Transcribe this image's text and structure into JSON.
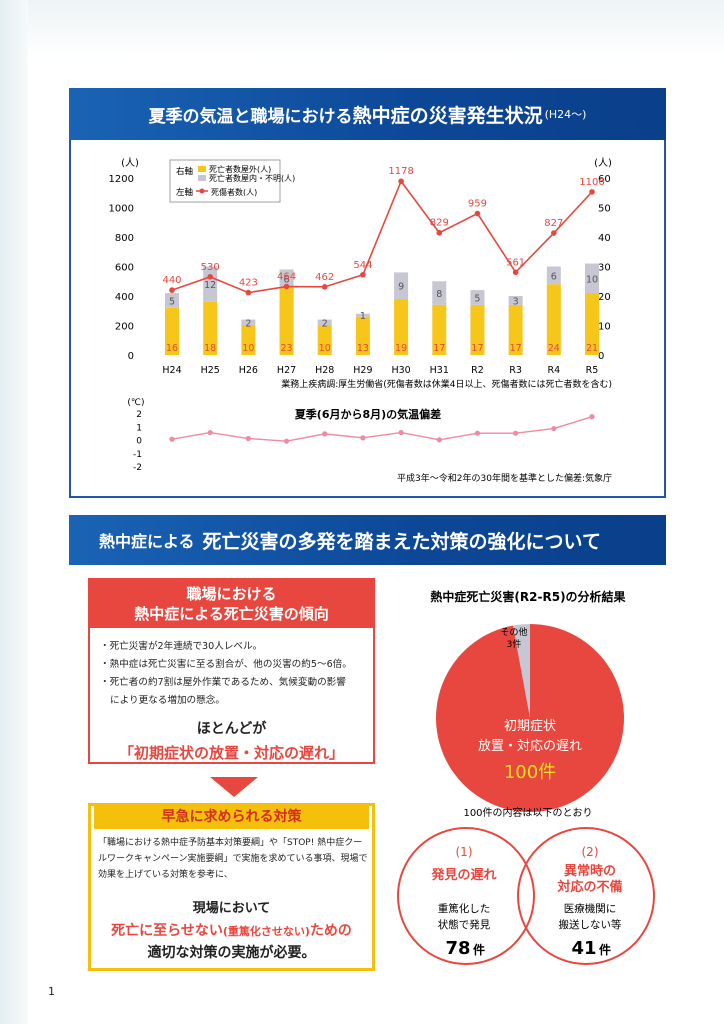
{
  "section1": {
    "title_a": "夏季の気温と職場における",
    "title_b": "熱中症の災害発生状況",
    "title_c": "(H24〜)"
  },
  "chart_data": [
    {
      "type": "bar+line",
      "categories": [
        "H24",
        "H25",
        "H26",
        "H27",
        "H28",
        "H29",
        "H30",
        "H31",
        "R2",
        "R3",
        "R4",
        "R5"
      ],
      "left_axis_unit": "(人)",
      "right_axis_unit": "(人)",
      "left_ticks": [
        "1200",
        "1000",
        "800",
        "600",
        "400",
        "200",
        "0"
      ],
      "right_ticks": [
        "60",
        "50",
        "40",
        "30",
        "20",
        "10",
        "0"
      ],
      "left_ylim": [
        0,
        1200
      ],
      "right_ylim": [
        0,
        60
      ],
      "legend": {
        "right_axis": "右軸",
        "left_axis": "左軸",
        "outdoor": "死亡者数屋外(人)",
        "indoor": "死亡者数屋内・不明(人)",
        "casualties": "死傷者数(人)"
      },
      "series": [
        {
          "name": "死亡者数屋外(人)",
          "axis": "right",
          "values": [
            16,
            18,
            10,
            23,
            10,
            13,
            19,
            17,
            17,
            17,
            24,
            21
          ]
        },
        {
          "name": "死亡者数屋内・不明(人)",
          "axis": "right",
          "values": [
            5,
            12,
            2,
            6,
            2,
            1,
            9,
            8,
            5,
            3,
            6,
            10
          ]
        },
        {
          "name": "死傷者数(人)",
          "axis": "left",
          "values": [
            440,
            530,
            423,
            464,
            462,
            544,
            1178,
            829,
            959,
            561,
            827,
            1106
          ]
        }
      ],
      "source": "業務上疾病調:厚生労働省(死傷者数は休業4日以上、死傷者数には死亡者数を含む)",
      "colors": {
        "outdoor": "#f7c61a",
        "indoor": "#c6c7d2",
        "casualties": "#e8473f"
      }
    },
    {
      "type": "line",
      "title": "夏季(6月から8月)の気温偏差",
      "unit": "(℃)",
      "ticks": [
        "2",
        "1",
        "0",
        "-1",
        "-2"
      ],
      "ylim": [
        -2,
        2
      ],
      "x": [
        "H24",
        "H25",
        "H26",
        "H27",
        "H28",
        "H29",
        "H30",
        "H31",
        "R2",
        "R3",
        "R4",
        "R5"
      ],
      "values": [
        0.1,
        0.6,
        0.15,
        -0.05,
        0.5,
        0.2,
        0.6,
        0.05,
        0.55,
        0.55,
        0.9,
        1.8
      ],
      "note": "平成3年〜令和2年の30年間を基準とした偏差:気象庁",
      "colors": {
        "line": "#f08aa0"
      }
    },
    {
      "type": "pie",
      "title": "熱中症死亡災害(R2-R5)の分析結果",
      "slices": [
        {
          "label": "初期症状の放置・対応の遅れ",
          "value": 100,
          "value_text": "100件",
          "color": "#e8473f"
        },
        {
          "label": "その他",
          "value": 3,
          "value_text": "3件",
          "color": "#c6c7d2"
        }
      ]
    }
  ],
  "section2": {
    "title_a": "熱中症による",
    "title_b": "死亡災害の多発を踏まえた対策の強化について"
  },
  "tendency": {
    "head1": "職場における",
    "head2": "熱中症による死亡災害の傾向",
    "bullet1": "・死亡災害が2年連続で30人レベル。",
    "bullet2": "・熱中症は死亡災害に至る割合が、他の災害の約5〜6倍。",
    "bullet3a": "・死亡者の約7割は屋外作業であるため、気候変動の影響",
    "bullet3b": "により更なる増加の懸念。",
    "hotondo": "ほとんどが",
    "delay": "「初期症状の放置・対応の遅れ」"
  },
  "measures": {
    "head": "早急に求められる対策",
    "text": "「職場における熱中症予防基本対策要綱」や「STOP! 熱中症クールワークキャンペーン実施要綱」で実施を求めている事項、現場で効果を上げている対策を参考に、",
    "line1": "現場において",
    "line2a": "死亡に至らせない",
    "line2b": "(重篤化させない)",
    "line2c": "ための",
    "line3": "適切な対策の実施が必要。"
  },
  "analysis": {
    "breakdown_note": "100件の内容は以下のとおり",
    "c1_num": "(1)",
    "c1_title": "発見の遅れ",
    "c1_desc1": "重篤化した",
    "c1_desc2": "状態で発見",
    "c1_count": "78",
    "c1_unit": "件",
    "c2_num": "(2)",
    "c2_title1": "異常時の",
    "c2_title2": "対応の不備",
    "c2_desc1": "医療機関に",
    "c2_desc2": "搬送しない等",
    "c2_count": "41",
    "c2_unit": "件"
  },
  "page_number": "1"
}
